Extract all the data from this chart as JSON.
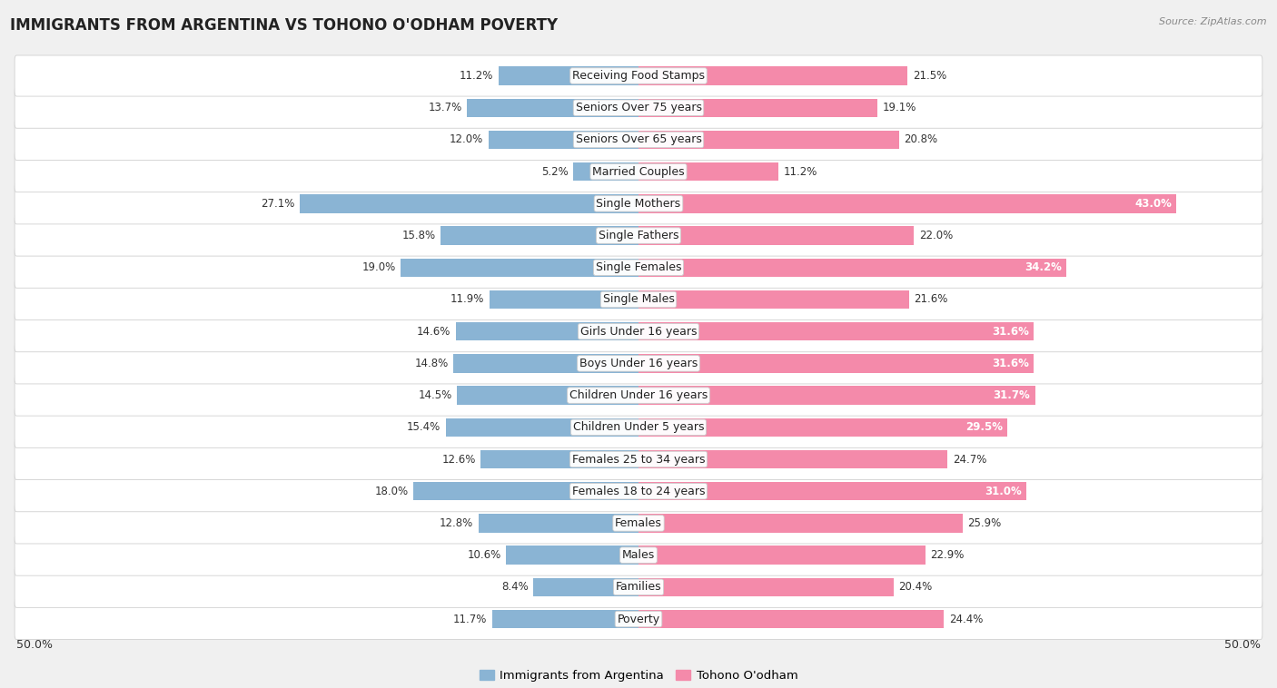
{
  "title": "IMMIGRANTS FROM ARGENTINA VS TOHONO O'ODHAM POVERTY",
  "source": "Source: ZipAtlas.com",
  "categories": [
    "Poverty",
    "Families",
    "Males",
    "Females",
    "Females 18 to 24 years",
    "Females 25 to 34 years",
    "Children Under 5 years",
    "Children Under 16 years",
    "Boys Under 16 years",
    "Girls Under 16 years",
    "Single Males",
    "Single Females",
    "Single Fathers",
    "Single Mothers",
    "Married Couples",
    "Seniors Over 65 years",
    "Seniors Over 75 years",
    "Receiving Food Stamps"
  ],
  "left_values": [
    11.7,
    8.4,
    10.6,
    12.8,
    18.0,
    12.6,
    15.4,
    14.5,
    14.8,
    14.6,
    11.9,
    19.0,
    15.8,
    27.1,
    5.2,
    12.0,
    13.7,
    11.2
  ],
  "right_values": [
    24.4,
    20.4,
    22.9,
    25.9,
    31.0,
    24.7,
    29.5,
    31.7,
    31.6,
    31.6,
    21.6,
    34.2,
    22.0,
    43.0,
    11.2,
    20.8,
    19.1,
    21.5
  ],
  "left_color": "#8ab4d4",
  "right_color": "#f48aaa",
  "bar_height": 0.58,
  "max_val": 50.0,
  "bg_color": "#f0f0f0",
  "label_fontsize": 9.0,
  "value_fontsize": 8.5,
  "title_fontsize": 12,
  "legend_label_left": "Immigrants from Argentina",
  "legend_label_right": "Tohono O'odham"
}
